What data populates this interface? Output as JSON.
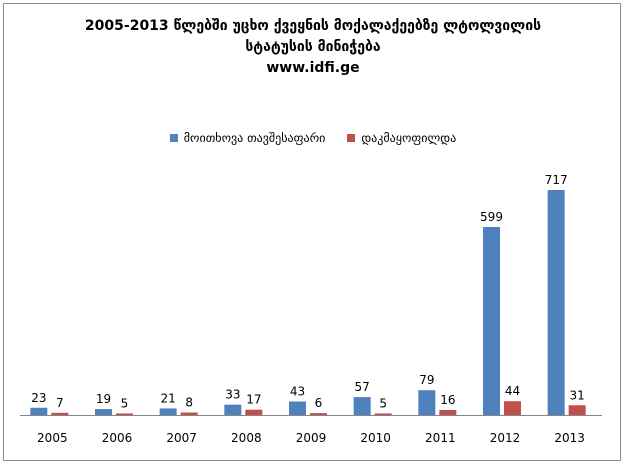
{
  "chart_data": {
    "type": "bar",
    "title_lines": [
      "2005-2013 წლებში უცხო ქვეყნის მოქალაქეებზე ლტოლვილის",
      "სტატუსის მინიჭება",
      "www.idfi.ge"
    ],
    "categories": [
      "2005",
      "2006",
      "2007",
      "2008",
      "2009",
      "2010",
      "2011",
      "2012",
      "2013"
    ],
    "series": [
      {
        "name": "მოითხოვა თავშესაფარი",
        "color": "#4f81bd",
        "values": [
          23,
          19,
          21,
          33,
          43,
          57,
          79,
          599,
          717
        ]
      },
      {
        "name": "დაკმაყოფილდა",
        "color": "#c0504d",
        "values": [
          7,
          5,
          8,
          17,
          6,
          5,
          16,
          44,
          31
        ]
      }
    ],
    "ylim": [
      0,
      730
    ],
    "legend_position": "top",
    "grid": false,
    "data_labels": true
  }
}
